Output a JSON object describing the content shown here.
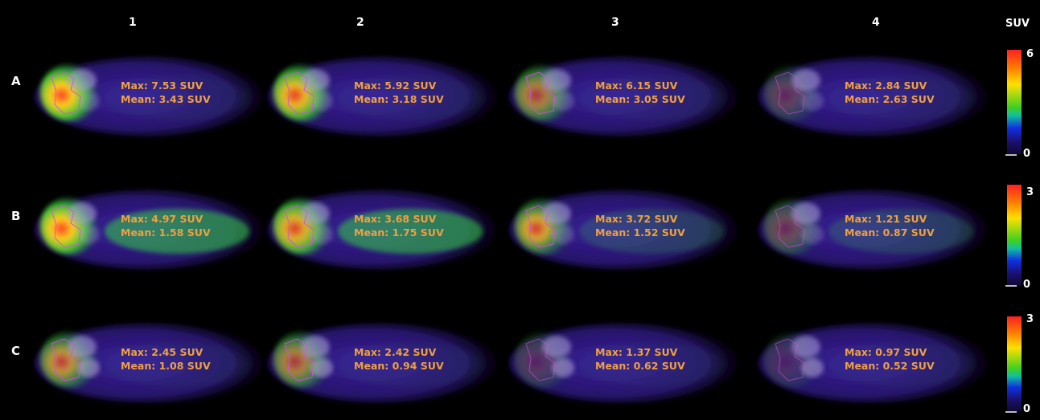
{
  "columns": [
    "1",
    "2",
    "3",
    "4"
  ],
  "colorbar_title": "SUV",
  "rows": [
    {
      "label": "A",
      "scale_max": "6",
      "scale_min": "0",
      "panels": [
        {
          "max": "Max: 7.53 SUV",
          "mean": "Mean: 3.43 SUV"
        },
        {
          "max": "Max: 5.92 SUV",
          "mean": "Mean: 3.18 SUV"
        },
        {
          "max": "Max: 6.15 SUV",
          "mean": "Mean: 3.05 SUV"
        },
        {
          "max": "Max: 2.84 SUV",
          "mean": "Mean: 2.63 SUV"
        }
      ]
    },
    {
      "label": "B",
      "scale_max": "3",
      "scale_min": "0",
      "panels": [
        {
          "max": "Max: 4.97 SUV",
          "mean": "Mean: 1.58 SUV"
        },
        {
          "max": "Max: 3.68 SUV",
          "mean": "Mean: 1.75 SUV"
        },
        {
          "max": "Max: 3.72 SUV",
          "mean": "Mean: 1.52 SUV"
        },
        {
          "max": "Max: 1.21 SUV",
          "mean": "Mean: 0.87 SUV"
        }
      ]
    },
    {
      "label": "C",
      "scale_max": "3",
      "scale_min": "0",
      "panels": [
        {
          "max": "Max: 2.45 SUV",
          "mean": "Mean: 1.08 SUV"
        },
        {
          "max": "Max: 2.42 SUV",
          "mean": "Mean: 0.94 SUV"
        },
        {
          "max": "Max: 1.37 SUV",
          "mean": "Mean: 0.62 SUV"
        },
        {
          "max": "Max: 0.97 SUV",
          "mean": "Mean: 0.52 SUV"
        }
      ]
    }
  ],
  "colors": {
    "stat_text": "#f0a040",
    "body_fill": "#2a1670",
    "roi_outline": "#d050e0"
  }
}
